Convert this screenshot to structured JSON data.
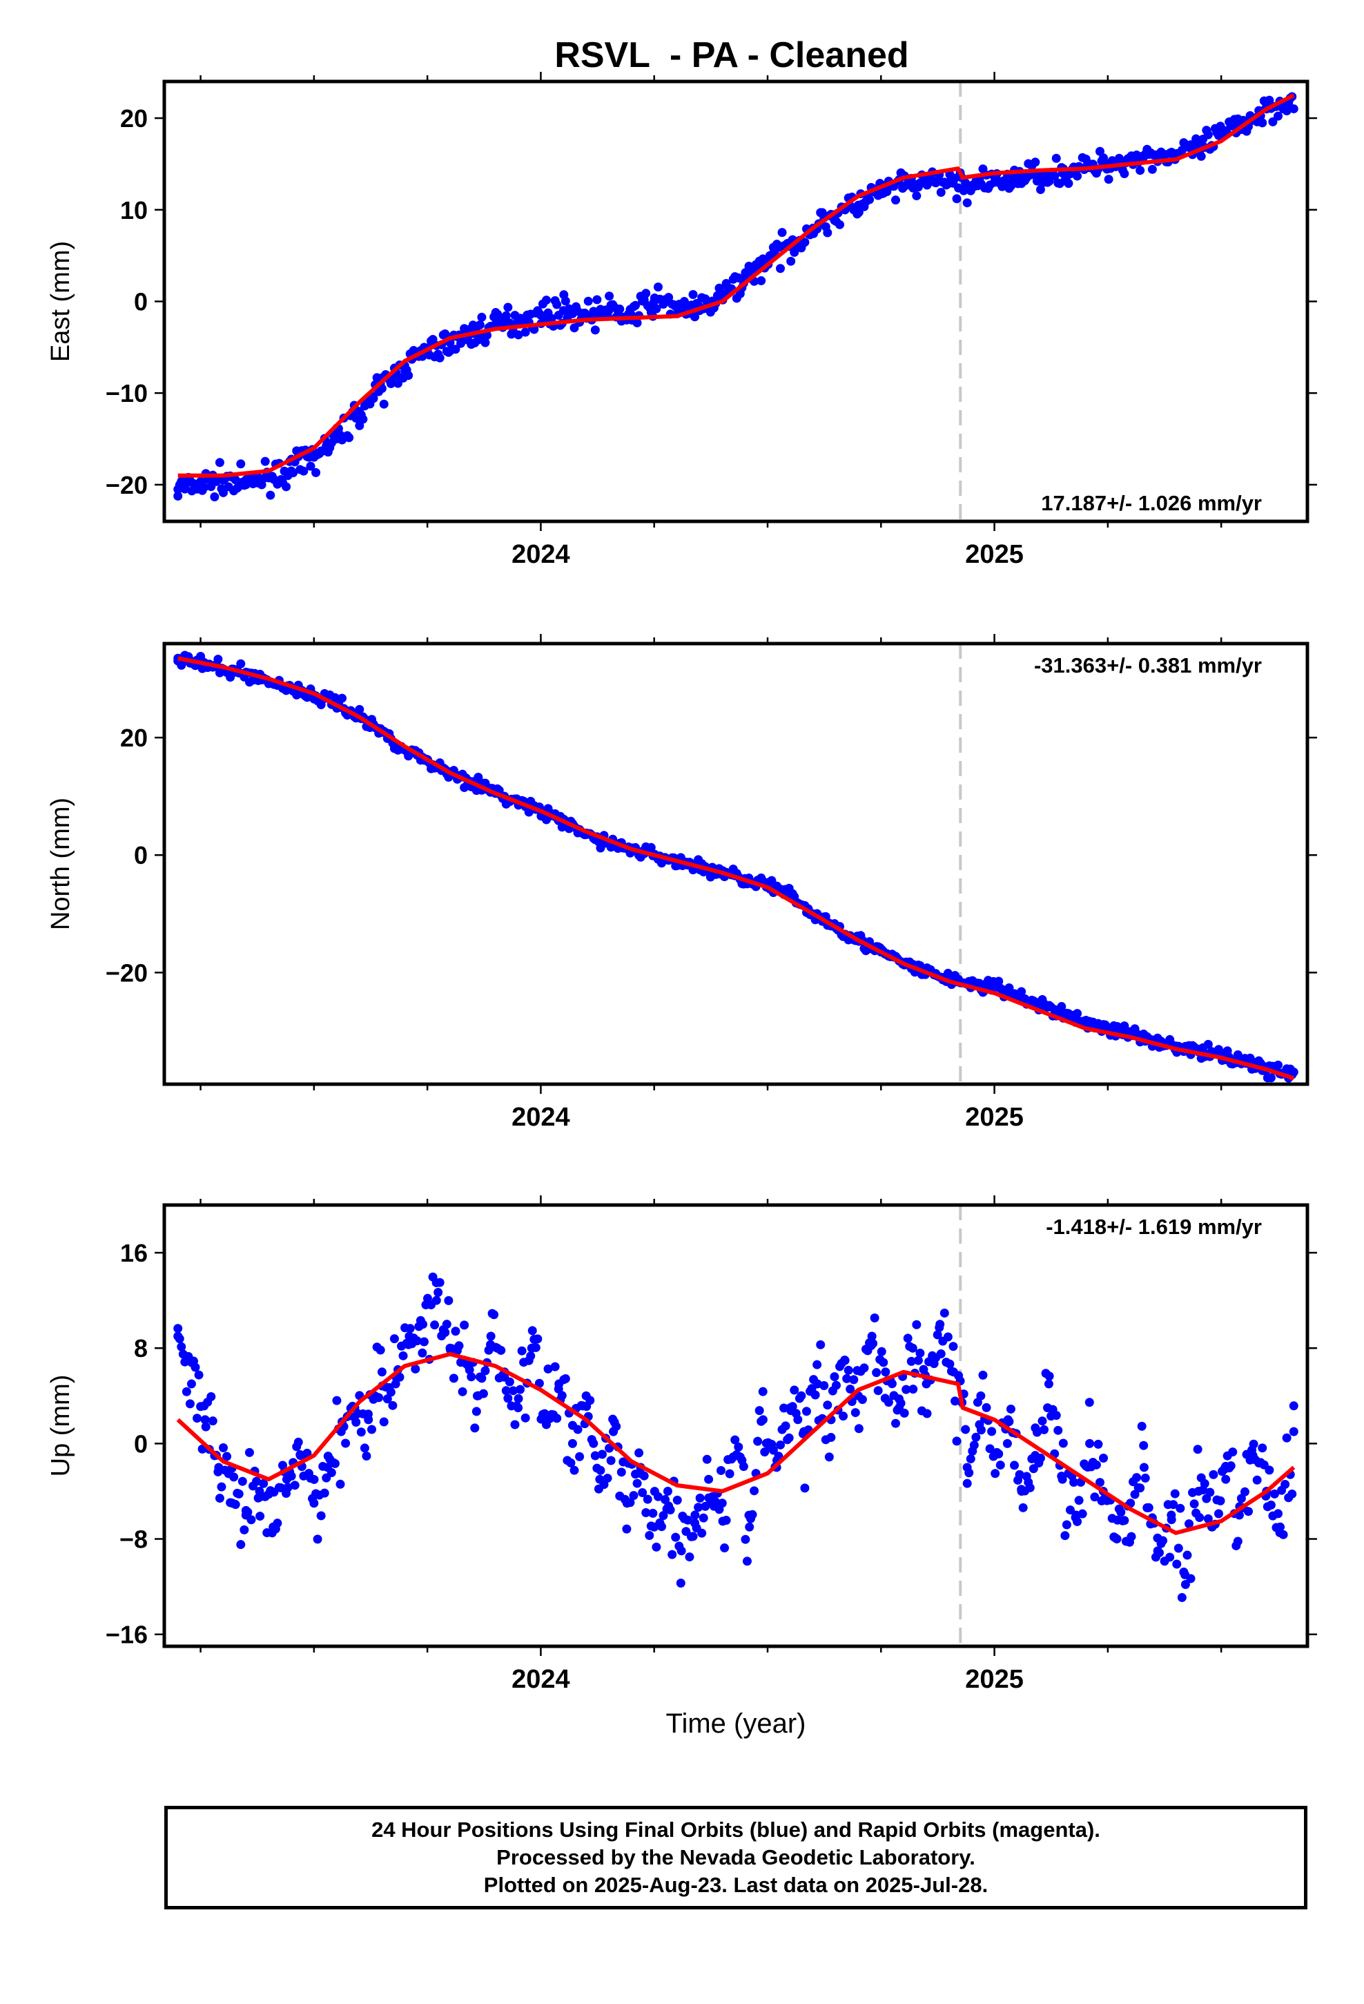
{
  "title": "RSVL  - PA - Cleaned",
  "colors": {
    "data": "#0000ff",
    "model": "#ff0000",
    "offset_line": "#c8c8c8",
    "axis": "#000000"
  },
  "offset_marker_year": 2024.925,
  "chart_data": [
    {
      "type": "scatter",
      "component": "east",
      "ylabel": "East (mm)",
      "xlabel": "",
      "ylim": [
        -24,
        24
      ],
      "yticks": [
        -20,
        -10,
        0,
        10,
        20
      ],
      "xlim": [
        2023.17,
        2025.69
      ],
      "xticks": [
        2024,
        2025
      ],
      "xtick_labels": [
        "2024",
        "2025"
      ],
      "rate_label": "17.187+/- 1.026 mm/yr",
      "rate_label_position": "bottom-right",
      "model_curve": {
        "x": [
          2023.2,
          2023.3,
          2023.4,
          2023.5,
          2023.6,
          2023.7,
          2023.8,
          2023.9,
          2024.0,
          2024.1,
          2024.2,
          2024.3,
          2024.4,
          2024.5,
          2024.6,
          2024.7,
          2024.8,
          2024.92,
          2024.93,
          2025.0,
          2025.1,
          2025.2,
          2025.3,
          2025.4,
          2025.5,
          2025.6,
          2025.66
        ],
        "y": [
          -19.0,
          -19.0,
          -18.5,
          -16.0,
          -11.0,
          -6.5,
          -4.0,
          -3.0,
          -2.5,
          -2.0,
          -1.8,
          -1.6,
          0.0,
          4.0,
          8.0,
          11.5,
          13.5,
          14.5,
          13.5,
          14.0,
          14.3,
          14.5,
          15.0,
          15.5,
          17.5,
          21.0,
          22.5
        ]
      },
      "observations": {
        "x": [
          2023.2,
          2023.25,
          2023.3,
          2023.35,
          2023.4,
          2023.45,
          2023.5,
          2023.55,
          2023.6,
          2023.65,
          2023.7,
          2023.75,
          2023.8,
          2023.85,
          2023.9,
          2023.95,
          2024.0,
          2024.05,
          2024.1,
          2024.15,
          2024.2,
          2024.25,
          2024.3,
          2024.35,
          2024.4,
          2024.45,
          2024.5,
          2024.55,
          2024.6,
          2024.65,
          2024.7,
          2024.75,
          2024.8,
          2024.85,
          2024.9,
          2024.95,
          2025.0,
          2025.05,
          2025.1,
          2025.15,
          2025.2,
          2025.25,
          2025.3,
          2025.35,
          2025.4,
          2025.45,
          2025.5,
          2025.55,
          2025.6,
          2025.65
        ],
        "y": [
          -20.5,
          -20.0,
          -19.5,
          -20.0,
          -19.0,
          -18.5,
          -17.0,
          -15.0,
          -12.0,
          -9.5,
          -7.0,
          -5.5,
          -4.5,
          -3.5,
          -2.5,
          -2.0,
          -1.5,
          -1.0,
          -1.5,
          -1.0,
          -1.5,
          0.0,
          -0.5,
          -1.0,
          0.5,
          2.5,
          4.5,
          6.0,
          8.0,
          9.5,
          10.5,
          12.0,
          12.5,
          13.0,
          13.0,
          12.5,
          13.0,
          13.5,
          14.0,
          14.0,
          14.5,
          15.0,
          15.5,
          16.0,
          16.0,
          16.5,
          18.0,
          19.5,
          21.0,
          22.0
        ]
      }
    },
    {
      "type": "scatter",
      "component": "north",
      "ylabel": "North (mm)",
      "xlabel": "",
      "ylim": [
        -39,
        36
      ],
      "yticks": [
        -20,
        0,
        20
      ],
      "xlim": [
        2023.17,
        2025.69
      ],
      "xticks": [
        2024,
        2025
      ],
      "xtick_labels": [
        "2024",
        "2025"
      ],
      "rate_label": "-31.363+/- 0.381 mm/yr",
      "rate_label_position": "top-right",
      "model_curve": {
        "x": [
          2023.2,
          2023.3,
          2023.4,
          2023.5,
          2023.6,
          2023.7,
          2023.8,
          2023.9,
          2024.0,
          2024.1,
          2024.2,
          2024.3,
          2024.4,
          2024.5,
          2024.6,
          2024.7,
          2024.8,
          2024.9,
          2025.0,
          2025.1,
          2025.2,
          2025.3,
          2025.4,
          2025.5,
          2025.6,
          2025.66
        ],
        "y": [
          33.5,
          32.0,
          30.0,
          27.5,
          23.5,
          18.5,
          14.0,
          10.5,
          7.5,
          4.0,
          1.0,
          -1.0,
          -3.0,
          -5.5,
          -10.0,
          -14.5,
          -18.5,
          -21.5,
          -23.5,
          -26.5,
          -29.5,
          -31.0,
          -33.0,
          -34.5,
          -36.5,
          -38.0
        ]
      },
      "observations": {
        "x": [
          2023.2,
          2023.25,
          2023.3,
          2023.35,
          2023.4,
          2023.45,
          2023.5,
          2023.55,
          2023.6,
          2023.65,
          2023.7,
          2023.75,
          2023.8,
          2023.85,
          2023.9,
          2023.95,
          2024.0,
          2024.05,
          2024.1,
          2024.15,
          2024.2,
          2024.25,
          2024.3,
          2024.35,
          2024.4,
          2024.45,
          2024.5,
          2024.55,
          2024.6,
          2024.65,
          2024.7,
          2024.75,
          2024.8,
          2024.85,
          2024.9,
          2024.95,
          2025.0,
          2025.05,
          2025.1,
          2025.15,
          2025.2,
          2025.25,
          2025.3,
          2025.35,
          2025.4,
          2025.45,
          2025.5,
          2025.55,
          2025.6,
          2025.65
        ],
        "y": [
          33.5,
          32.5,
          31.5,
          31.0,
          29.5,
          28.5,
          27.0,
          26.0,
          23.5,
          21.0,
          18.0,
          16.0,
          14.0,
          12.5,
          10.5,
          9.0,
          7.5,
          5.5,
          3.5,
          2.0,
          1.0,
          0.0,
          -1.0,
          -2.0,
          -3.0,
          -4.0,
          -5.0,
          -7.0,
          -10.0,
          -12.0,
          -14.5,
          -16.5,
          -18.5,
          -20.0,
          -21.0,
          -22.0,
          -22.5,
          -24.0,
          -25.5,
          -27.0,
          -28.5,
          -29.5,
          -30.5,
          -31.5,
          -32.5,
          -33.5,
          -34.0,
          -35.0,
          -36.5,
          -37.0
        ]
      }
    },
    {
      "type": "scatter",
      "component": "up",
      "ylabel": "Up (mm)",
      "xlabel": "Time (year)",
      "ylim": [
        -17,
        20
      ],
      "yticks": [
        -16,
        -8,
        0,
        8,
        16
      ],
      "xlim": [
        2023.17,
        2025.69
      ],
      "xticks": [
        2024,
        2025
      ],
      "xtick_labels": [
        "2024",
        "2025"
      ],
      "rate_label": "-1.418+/- 1.619 mm/yr",
      "rate_label_position": "top-right",
      "model_curve": {
        "x": [
          2023.2,
          2023.3,
          2023.4,
          2023.5,
          2023.6,
          2023.7,
          2023.8,
          2023.9,
          2024.0,
          2024.1,
          2024.2,
          2024.3,
          2024.4,
          2024.5,
          2024.6,
          2024.7,
          2024.8,
          2024.92,
          2024.93,
          2025.0,
          2025.1,
          2025.2,
          2025.3,
          2025.4,
          2025.5,
          2025.6,
          2025.66
        ],
        "y": [
          2.0,
          -1.5,
          -3.0,
          -1.0,
          3.5,
          6.5,
          7.5,
          6.5,
          4.5,
          2.0,
          -1.5,
          -3.5,
          -4.0,
          -2.5,
          1.0,
          4.5,
          6.0,
          5.0,
          3.0,
          2.0,
          -0.5,
          -3.0,
          -5.5,
          -7.5,
          -6.5,
          -4.0,
          -2.0
        ]
      },
      "observations": {
        "x": [
          2023.2,
          2023.23,
          2023.26,
          2023.29,
          2023.32,
          2023.35,
          2023.38,
          2023.41,
          2023.44,
          2023.47,
          2023.5,
          2023.53,
          2023.56,
          2023.59,
          2023.62,
          2023.65,
          2023.68,
          2023.71,
          2023.74,
          2023.77,
          2023.8,
          2023.83,
          2023.86,
          2023.89,
          2023.92,
          2023.95,
          2023.98,
          2024.01,
          2024.04,
          2024.07,
          2024.1,
          2024.13,
          2024.16,
          2024.19,
          2024.22,
          2024.25,
          2024.28,
          2024.31,
          2024.34,
          2024.37,
          2024.4,
          2024.43,
          2024.46,
          2024.49,
          2024.52,
          2024.55,
          2024.58,
          2024.61,
          2024.64,
          2024.67,
          2024.7,
          2024.73,
          2024.76,
          2024.79,
          2024.82,
          2024.85,
          2024.88,
          2024.91,
          2024.94,
          2024.97,
          2025.0,
          2025.03,
          2025.06,
          2025.09,
          2025.12,
          2025.15,
          2025.18,
          2025.21,
          2025.24,
          2025.27,
          2025.3,
          2025.33,
          2025.36,
          2025.39,
          2025.42,
          2025.45,
          2025.48,
          2025.51,
          2025.54,
          2025.57,
          2025.6,
          2025.63,
          2025.66
        ],
        "y": [
          9.0,
          5.0,
          2.0,
          -2.0,
          -5.0,
          -6.0,
          -4.0,
          -7.0,
          -3.0,
          -1.0,
          -5.0,
          -2.0,
          1.0,
          3.0,
          2.0,
          6.0,
          5.0,
          9.0,
          10.0,
          12.0,
          8.0,
          7.0,
          4.0,
          9.0,
          6.0,
          3.0,
          8.0,
          2.0,
          5.0,
          0.0,
          4.0,
          -3.0,
          1.0,
          -5.0,
          -2.0,
          -7.0,
          -4.0,
          -9.0,
          -6.0,
          -3.0,
          -5.0,
          -1.0,
          -7.0,
          2.0,
          -2.0,
          3.0,
          1.0,
          5.0,
          2.0,
          7.0,
          4.0,
          9.0,
          6.0,
          3.0,
          8.0,
          5.0,
          10.0,
          6.0,
          -2.0,
          4.0,
          -1.0,
          2.0,
          -4.0,
          -1.0,
          5.0,
          -3.0,
          -6.0,
          0.0,
          -4.0,
          -8.0,
          -5.0,
          -2.0,
          -9.0,
          -6.0,
          -11.0,
          -4.0,
          -7.0,
          -3.0,
          -6.0,
          -1.0,
          -4.0,
          -7.0,
          1.0
        ]
      }
    }
  ],
  "caption": {
    "line1": "24 Hour Positions Using Final Orbits (blue) and Rapid Orbits (magenta).",
    "line2": "Processed by the Nevada Geodetic Laboratory.",
    "line3": "Plotted on 2025-Aug-23. Last data on 2025-Jul-28."
  }
}
